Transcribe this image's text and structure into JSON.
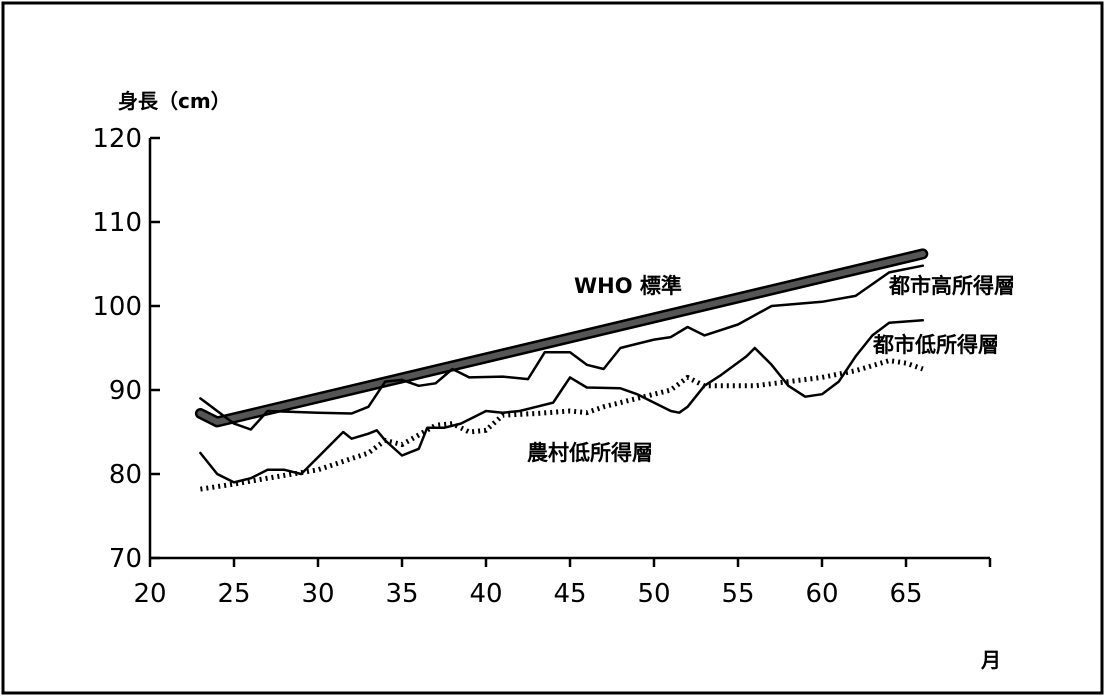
{
  "chart_data": {
    "type": "line",
    "title": "",
    "ylabel": "身長（cm）",
    "xlabel": "月",
    "xlim": [
      20,
      70
    ],
    "ylim": [
      70,
      120
    ],
    "xticks": [
      20,
      25,
      30,
      35,
      40,
      45,
      50,
      55,
      60,
      65
    ],
    "yticks": [
      70,
      80,
      90,
      100,
      110,
      120
    ],
    "legend": "inline",
    "grid": false,
    "series": [
      {
        "name": "WHO 標準",
        "style": "thick",
        "color": "#555555",
        "points": [
          [
            23,
            87.2
          ],
          [
            24,
            86.2
          ],
          [
            66,
            106.2
          ]
        ]
      },
      {
        "name": "都市高所得層",
        "style": "solid",
        "color": "#000000",
        "points": [
          [
            23,
            89
          ],
          [
            24,
            87.5
          ],
          [
            25,
            86
          ],
          [
            26,
            85.3
          ],
          [
            27,
            87.5
          ],
          [
            30,
            87.3
          ],
          [
            32,
            87.2
          ],
          [
            33,
            88
          ],
          [
            34,
            91
          ],
          [
            35,
            91.2
          ],
          [
            36,
            90.5
          ],
          [
            37,
            90.8
          ],
          [
            38,
            92.5
          ],
          [
            39,
            91.5
          ],
          [
            41,
            91.6
          ],
          [
            42.5,
            91.3
          ],
          [
            43.5,
            94.5
          ],
          [
            45,
            94.5
          ],
          [
            46,
            93
          ],
          [
            47,
            92.5
          ],
          [
            48,
            95
          ],
          [
            50,
            96
          ],
          [
            51,
            96.3
          ],
          [
            52,
            97.5
          ],
          [
            53,
            96.5
          ],
          [
            55,
            97.8
          ],
          [
            57,
            100
          ],
          [
            60,
            100.5
          ],
          [
            62,
            101.2
          ],
          [
            64,
            104
          ],
          [
            66,
            104.8
          ]
        ]
      },
      {
        "name": "都市低所得層",
        "style": "solid",
        "color": "#000000",
        "points": [
          [
            23,
            82.5
          ],
          [
            24,
            80
          ],
          [
            25,
            79
          ],
          [
            26,
            79.5
          ],
          [
            27,
            80.5
          ],
          [
            28,
            80.5
          ],
          [
            29,
            80
          ],
          [
            30,
            82
          ],
          [
            31,
            84
          ],
          [
            31.5,
            85
          ],
          [
            32,
            84.2
          ],
          [
            33,
            84.8
          ],
          [
            33.5,
            85.2
          ],
          [
            34,
            84
          ],
          [
            35,
            82.2
          ],
          [
            36,
            83
          ],
          [
            36.5,
            85.5
          ],
          [
            37.5,
            85.5
          ],
          [
            38.5,
            86
          ],
          [
            39.5,
            87
          ],
          [
            40,
            87.5
          ],
          [
            41,
            87.3
          ],
          [
            42,
            87.5
          ],
          [
            43,
            88
          ],
          [
            44,
            88.5
          ],
          [
            44.5,
            90
          ],
          [
            45,
            91.5
          ],
          [
            46,
            90.3
          ],
          [
            48,
            90.2
          ],
          [
            49,
            89.5
          ],
          [
            50,
            88.5
          ],
          [
            51,
            87.5
          ],
          [
            51.5,
            87.3
          ],
          [
            52,
            88
          ],
          [
            53,
            90.5
          ],
          [
            54,
            91.8
          ],
          [
            55.5,
            94
          ],
          [
            56,
            95
          ],
          [
            57,
            93
          ],
          [
            58,
            90.5
          ],
          [
            59,
            89.2
          ],
          [
            60,
            89.5
          ],
          [
            61,
            91
          ],
          [
            62,
            94
          ],
          [
            63,
            96.5
          ],
          [
            64,
            98
          ],
          [
            66,
            98.3
          ]
        ]
      },
      {
        "name": "農村低所得層",
        "style": "dotted",
        "color": "#000000",
        "points": [
          [
            23,
            78.2
          ],
          [
            25,
            78.8
          ],
          [
            27,
            79.5
          ],
          [
            30,
            80.5
          ],
          [
            31.5,
            81.5
          ],
          [
            33,
            82.5
          ],
          [
            34,
            84
          ],
          [
            35,
            83.5
          ],
          [
            37,
            85.8
          ],
          [
            38,
            86
          ],
          [
            39,
            85
          ],
          [
            40,
            85.2
          ],
          [
            41,
            87
          ],
          [
            43,
            87.2
          ],
          [
            45,
            87.5
          ],
          [
            46,
            87.3
          ],
          [
            47,
            88
          ],
          [
            49,
            89
          ],
          [
            50,
            89.5
          ],
          [
            51,
            90
          ],
          [
            52,
            91.5
          ],
          [
            53,
            90.5
          ],
          [
            56,
            90.5
          ],
          [
            58,
            91
          ],
          [
            60,
            91.5
          ],
          [
            62,
            92.3
          ],
          [
            64,
            93.5
          ],
          [
            65,
            93.2
          ],
          [
            66,
            92.5
          ]
        ]
      }
    ]
  }
}
